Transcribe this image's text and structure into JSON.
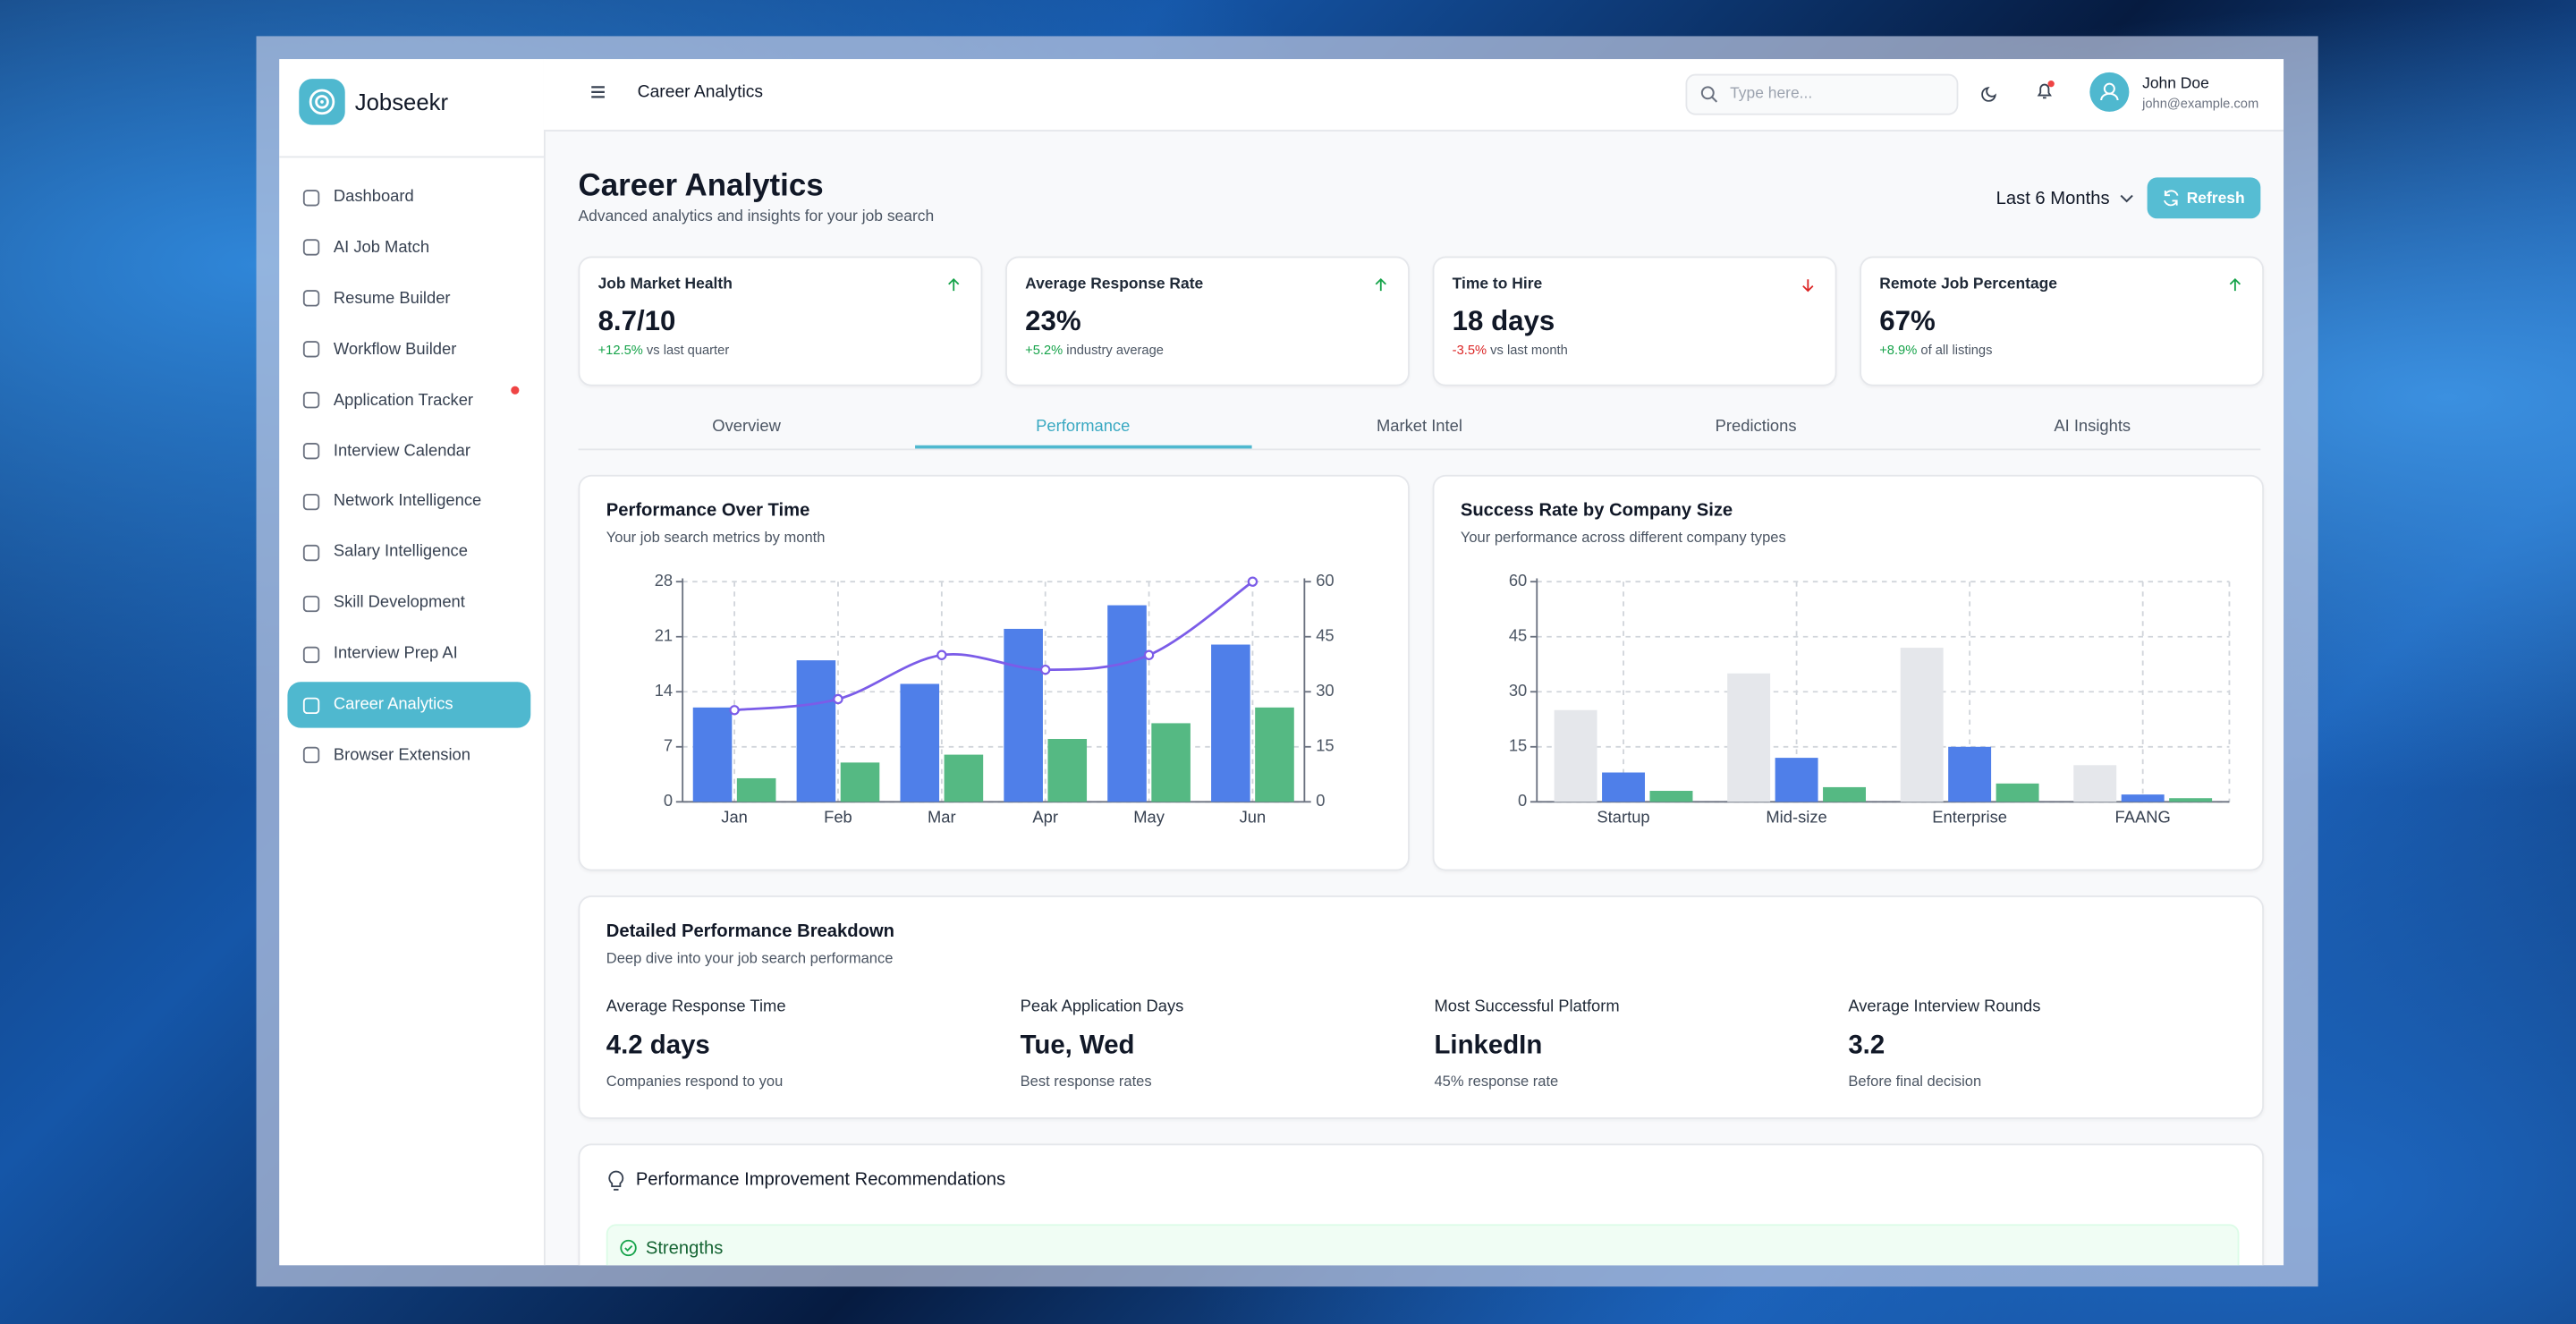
{
  "app": {
    "brand": "Jobseekr"
  },
  "sidebar": {
    "items": [
      {
        "label": "Dashboard"
      },
      {
        "label": "AI Job Match"
      },
      {
        "label": "Resume Builder"
      },
      {
        "label": "Workflow Builder"
      },
      {
        "label": "Application Tracker",
        "badge": true
      },
      {
        "label": "Interview Calendar"
      },
      {
        "label": "Network Intelligence"
      },
      {
        "label": "Salary Intelligence"
      },
      {
        "label": "Skill Development"
      },
      {
        "label": "Interview Prep AI"
      },
      {
        "label": "Career Analytics",
        "active": true
      },
      {
        "label": "Browser Extension"
      }
    ]
  },
  "topbar": {
    "page": "Career Analytics",
    "search_placeholder": "Type here...",
    "user": {
      "name": "John Doe",
      "email": "john@example.com"
    }
  },
  "header": {
    "title": "Career Analytics",
    "subtitle": "Advanced analytics and insights for your job search",
    "period": "Last 6 Months",
    "refresh": "Refresh"
  },
  "kpis": [
    {
      "title": "Job Market Health",
      "value": "8.7/10",
      "change": "+12.5%",
      "note": "vs last quarter",
      "trend": "up"
    },
    {
      "title": "Average Response Rate",
      "value": "23%",
      "change": "+5.2%",
      "note": "industry average",
      "trend": "up"
    },
    {
      "title": "Time to Hire",
      "value": "18 days",
      "change": "-3.5%",
      "note": "vs last month",
      "trend": "down"
    },
    {
      "title": "Remote Job Percentage",
      "value": "67%",
      "change": "+8.9%",
      "note": "of all listings",
      "trend": "up"
    }
  ],
  "tabs": {
    "items": [
      "Overview",
      "Performance",
      "Market Intel",
      "Predictions",
      "AI Insights"
    ],
    "active": 1
  },
  "chart_data": [
    {
      "type": "bar",
      "title": "Performance Over Time",
      "subtitle": "Your job search metrics by month",
      "categories": [
        "Jan",
        "Feb",
        "Mar",
        "Apr",
        "May",
        "Jun"
      ],
      "ylim": [
        0,
        28
      ],
      "yticks": [
        0,
        7,
        14,
        21,
        28
      ],
      "y2lim": [
        0,
        60
      ],
      "y2ticks": [
        0,
        15,
        30,
        45,
        60
      ],
      "grid": true,
      "series": [
        {
          "color": "#4f7fe9",
          "values": [
            12,
            18,
            15,
            22,
            25,
            20
          ]
        },
        {
          "color": "#55b983",
          "values": [
            3,
            5,
            6,
            8,
            10,
            12
          ]
        },
        {
          "type": "line",
          "axis": "y2",
          "color": "#7b5ce8",
          "values": [
            25,
            28,
            40,
            36,
            40,
            60
          ]
        }
      ]
    },
    {
      "type": "bar",
      "title": "Success Rate by Company Size",
      "subtitle": "Your performance across different company types",
      "categories": [
        "Startup",
        "Mid-size",
        "Enterprise",
        "FAANG"
      ],
      "ylim": [
        0,
        60
      ],
      "yticks": [
        0,
        15,
        30,
        45,
        60
      ],
      "grid": true,
      "series": [
        {
          "color": "#e5e7eb",
          "values": [
            25,
            35,
            42,
            10
          ]
        },
        {
          "color": "#4f7fe9",
          "values": [
            8,
            12,
            15,
            2
          ]
        },
        {
          "color": "#55b983",
          "values": [
            3,
            4,
            5,
            1
          ]
        }
      ]
    }
  ],
  "breakdown": {
    "title": "Detailed Performance Breakdown",
    "subtitle": "Deep dive into your job search performance",
    "items": [
      {
        "label": "Average Response Time",
        "value": "4.2 days",
        "note": "Companies respond to you"
      },
      {
        "label": "Peak Application Days",
        "value": "Tue, Wed",
        "note": "Best response rates"
      },
      {
        "label": "Most Successful Platform",
        "value": "LinkedIn",
        "note": "45% response rate"
      },
      {
        "label": "Average Interview Rounds",
        "value": "3.2",
        "note": "Before final decision"
      }
    ]
  },
  "recommendations": {
    "title": "Performance Improvement Recommendations",
    "sections": [
      {
        "title": "Strengths"
      }
    ]
  }
}
